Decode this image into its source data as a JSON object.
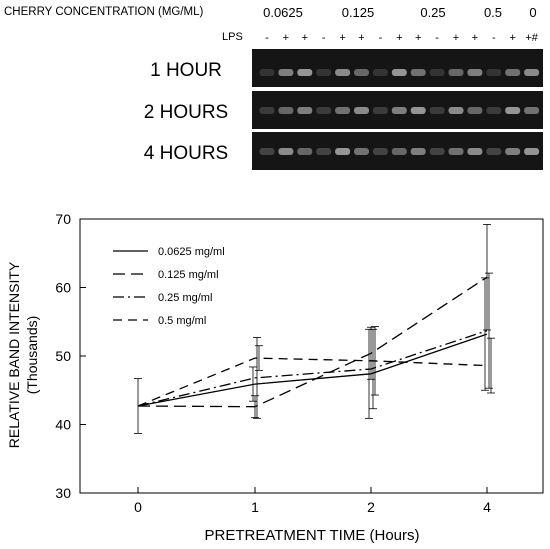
{
  "gel": {
    "concentration_label": "CHERRY CONCENTRATION (MG/ML)",
    "concentrations": [
      "0.0625",
      "0.125",
      "0.25",
      "0.5",
      "0"
    ],
    "lps_label": "LPS",
    "lps_marks": [
      "-",
      "+",
      "+",
      "-",
      "+",
      "+",
      "-",
      "+",
      "+",
      "-",
      "+",
      "+",
      "-",
      "+",
      "+#"
    ],
    "rows": [
      "1  HOUR",
      "2  HOURS",
      "4  HOURS"
    ]
  },
  "chart_data": {
    "type": "line",
    "xlabel": "PRETREATMENT TIME (Hours)",
    "ylabel": "RELATIVE BAND INTENSITY",
    "ylabel_sub": "(Thousands)",
    "categories": [
      "0",
      "1",
      "2",
      "4"
    ],
    "ylim": [
      30,
      70
    ],
    "yticks": [
      30,
      40,
      50,
      60,
      70
    ],
    "grid": false,
    "legend_position": "top-left",
    "series": [
      {
        "name": "0.0625  mg/ml",
        "values": [
          42.7,
          45.9,
          47.4,
          53.2
        ],
        "err": [
          4.0,
          2.5,
          6.5,
          8.2
        ],
        "dash": "solid"
      },
      {
        "name": "0.125  mg/ml",
        "values": [
          42.7,
          42.6,
          50.4,
          61.5
        ],
        "err": [
          4.0,
          1.6,
          3.8,
          7.7
        ],
        "dash": "longdash"
      },
      {
        "name": "0.25  mg/ml",
        "values": [
          42.7,
          46.8,
          48.1,
          53.7
        ],
        "err": [
          4.0,
          5.9,
          5.8,
          8.4
        ],
        "dash": "dashdot"
      },
      {
        "name": "0.5  mg/ml",
        "values": [
          42.7,
          49.7,
          49.3,
          48.6
        ],
        "err": [
          4.0,
          1.8,
          5.0,
          4.0
        ],
        "dash": "dash"
      }
    ]
  }
}
